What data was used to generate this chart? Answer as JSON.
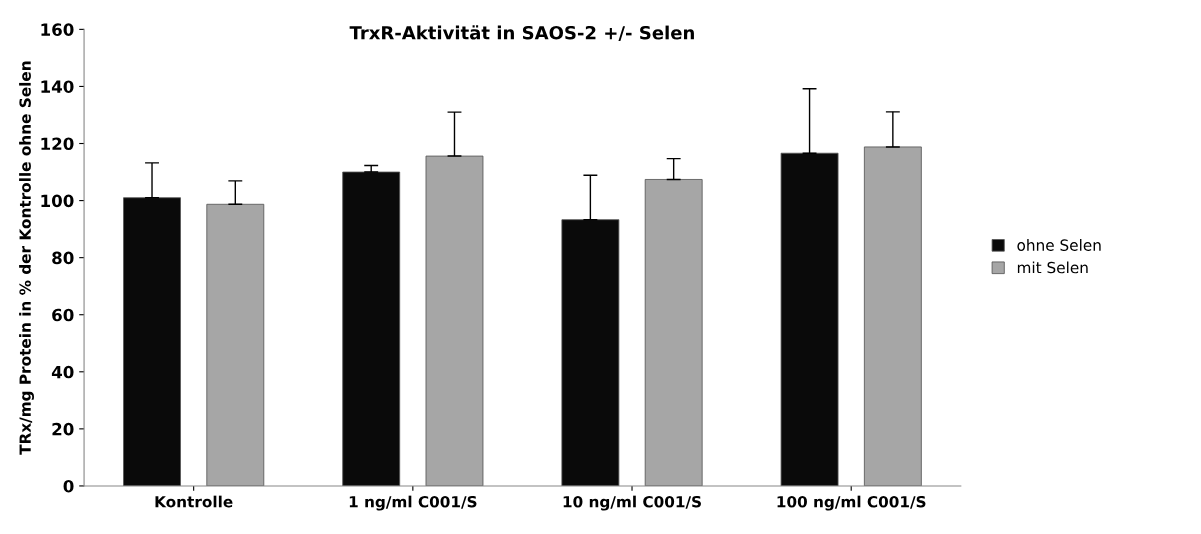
{
  "chart_data": {
    "type": "bar",
    "title": "TrxR-Aktivität in SAOS-2 +/- Selen",
    "ylabel": "TRx/mg Protein in % der Kontrolle ohne Selen",
    "categories": [
      "Kontrolle",
      "1 ng/ml C001/S",
      "10 ng/ml C001/S",
      "100 ng/ml C001/S"
    ],
    "series": [
      {
        "name": "ohne Selen",
        "color": "#0a0a0a",
        "values": [
          101,
          110,
          93.3,
          116.6
        ],
        "errors": [
          [
            101,
            113.2
          ],
          [
            110,
            112.3
          ],
          [
            93.3,
            108.9
          ],
          [
            116.6,
            139.2
          ]
        ]
      },
      {
        "name": "mit Selen",
        "color": "#a6a6a6",
        "values": [
          98.7,
          115.6,
          107.4,
          118.8
        ],
        "errors": [
          [
            98.7,
            106.9
          ],
          [
            115.6,
            131
          ],
          [
            107.4,
            114.7
          ],
          [
            118.8,
            131.1
          ]
        ]
      }
    ],
    "ylim": [
      0,
      160
    ],
    "yticks": [
      0,
      20,
      40,
      60,
      80,
      100,
      120,
      140,
      160
    ],
    "grid": false,
    "legend": "right"
  }
}
